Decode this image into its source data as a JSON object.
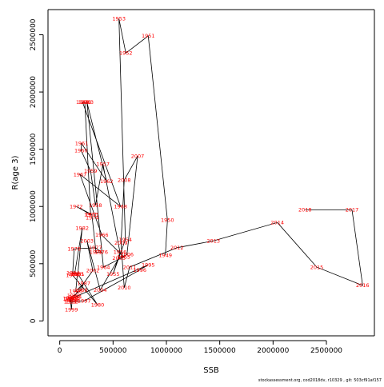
{
  "chart_data": {
    "type": "line",
    "title": "",
    "xlabel": "SSB",
    "ylabel": "R(age 3)",
    "xlim": [
      -110000,
      2950000
    ],
    "ylim": [
      -130000,
      2720000
    ],
    "x_ticks": [
      0,
      500000,
      1000000,
      1500000,
      2000000,
      2500000
    ],
    "x_tick_labels": [
      "0",
      "500000",
      "1000000",
      "1500000",
      "2000000",
      "2500000"
    ],
    "y_ticks": [
      0,
      500000,
      1000000,
      1500000,
      2000000,
      2500000
    ],
    "y_tick_labels": [
      "0",
      "500000",
      "1000000",
      "1500000",
      "2000000",
      "2500000"
    ],
    "grid": false,
    "legend": "none",
    "line_color": "#000000",
    "label_color": "#ff0000",
    "points": [
      {
        "year": "1949",
        "ssb": 990000,
        "r": 575000
      },
      {
        "year": "1950",
        "ssb": 1010000,
        "r": 880000
      },
      {
        "year": "1951",
        "ssb": 830000,
        "r": 2490000
      },
      {
        "year": "1952",
        "ssb": 620000,
        "r": 2340000
      },
      {
        "year": "1953",
        "ssb": 555000,
        "r": 2640000
      },
      {
        "year": "1954",
        "ssb": 615000,
        "r": 710000
      },
      {
        "year": "1955",
        "ssb": 500000,
        "r": 410000
      },
      {
        "year": "1956",
        "ssb": 565000,
        "r": 600000
      },
      {
        "year": "1957",
        "ssb": 405000,
        "r": 1370000
      },
      {
        "year": "1958",
        "ssb": 335000,
        "r": 1010000
      },
      {
        "year": "1959",
        "ssb": 290000,
        "r": 1310000
      },
      {
        "year": "1960",
        "ssb": 200000,
        "r": 1490000
      },
      {
        "year": "1961",
        "ssb": 205000,
        "r": 1550000
      },
      {
        "year": "1962",
        "ssb": 440000,
        "r": 1220000
      },
      {
        "year": "1963",
        "ssb": 255000,
        "r": 1910000
      },
      {
        "year": "1964",
        "ssb": 410000,
        "r": 470000
      },
      {
        "year": "1965",
        "ssb": 600000,
        "r": 560000
      },
      {
        "year": "1966",
        "ssb": 395000,
        "r": 750000
      },
      {
        "year": "1967",
        "ssb": 190000,
        "r": 1280000
      },
      {
        "year": "1968",
        "ssb": 570000,
        "r": 1000000
      },
      {
        "year": "1969",
        "ssb": 215000,
        "r": 1910000
      },
      {
        "year": "1970",
        "ssb": 235000,
        "r": 1910000
      },
      {
        "year": "1971",
        "ssb": 290000,
        "r": 930000
      },
      {
        "year": "1972",
        "ssb": 155000,
        "r": 1000000
      },
      {
        "year": "1973",
        "ssb": 300000,
        "r": 930000
      },
      {
        "year": "1974",
        "ssb": 305000,
        "r": 900000
      },
      {
        "year": "1975",
        "ssb": 340000,
        "r": 600000
      },
      {
        "year": "1976",
        "ssb": 390000,
        "r": 600000
      },
      {
        "year": "1977",
        "ssb": 335000,
        "r": 640000
      },
      {
        "year": "1978",
        "ssb": 135000,
        "r": 630000
      },
      {
        "year": "1979",
        "ssb": 120000,
        "r": 400000
      },
      {
        "year": "1980",
        "ssb": 355000,
        "r": 140000
      },
      {
        "year": "1981",
        "ssb": 170000,
        "r": 410000
      },
      {
        "year": "1982",
        "ssb": 210000,
        "r": 810000
      },
      {
        "year": "1983",
        "ssb": 140000,
        "r": 410000
      },
      {
        "year": "1984",
        "ssb": 125000,
        "r": 420000
      },
      {
        "year": "1985",
        "ssb": 165000,
        "r": 410000
      },
      {
        "year": "1986",
        "ssb": 150000,
        "r": 260000
      },
      {
        "year": "1987",
        "ssb": 225000,
        "r": 330000
      },
      {
        "year": "1988",
        "ssb": 200000,
        "r": 270000
      },
      {
        "year": "1989",
        "ssb": 130000,
        "r": 220000
      },
      {
        "year": "1990",
        "ssb": 90000,
        "r": 195000
      },
      {
        "year": "1991",
        "ssb": 100000,
        "r": 170000
      },
      {
        "year": "1992",
        "ssb": 130000,
        "r": 190000
      },
      {
        "year": "1993",
        "ssb": 110000,
        "r": 195000
      },
      {
        "year": "1994",
        "ssb": 145000,
        "r": 210000
      },
      {
        "year": "1995",
        "ssb": 830000,
        "r": 490000
      },
      {
        "year": "1996",
        "ssb": 750000,
        "r": 445000
      },
      {
        "year": "1997",
        "ssb": 230000,
        "r": 175000
      },
      {
        "year": "1998",
        "ssb": 115000,
        "r": 170000
      },
      {
        "year": "1999",
        "ssb": 110000,
        "r": 100000
      },
      {
        "year": "2000",
        "ssb": 100000,
        "r": 190000
      },
      {
        "year": "2001",
        "ssb": 125000,
        "r": 200000
      },
      {
        "year": "2002",
        "ssb": 310000,
        "r": 440000
      },
      {
        "year": "2003",
        "ssb": 255000,
        "r": 700000
      },
      {
        "year": "2004",
        "ssb": 380000,
        "r": 270000
      },
      {
        "year": "2005",
        "ssb": 555000,
        "r": 550000
      },
      {
        "year": "2006",
        "ssb": 630000,
        "r": 580000
      },
      {
        "year": "2007",
        "ssb": 730000,
        "r": 1440000
      },
      {
        "year": "2008",
        "ssb": 605000,
        "r": 1230000
      },
      {
        "year": "2009",
        "ssb": 575000,
        "r": 680000
      },
      {
        "year": "2010",
        "ssb": 605000,
        "r": 290000
      },
      {
        "year": "2011",
        "ssb": 655000,
        "r": 470000
      },
      {
        "year": "2012",
        "ssb": 1100000,
        "r": 640000
      },
      {
        "year": "2013",
        "ssb": 1440000,
        "r": 700000
      },
      {
        "year": "2014",
        "ssb": 2040000,
        "r": 860000
      },
      {
        "year": "2015",
        "ssb": 2410000,
        "r": 470000
      },
      {
        "year": "2016",
        "ssb": 2840000,
        "r": 310000
      },
      {
        "year": "2017",
        "ssb": 2740000,
        "r": 970000
      },
      {
        "year": "2018",
        "ssb": 2300000,
        "r": 970000
      }
    ]
  },
  "footer": {
    "text": "stockassessment.org,  cod2018dv,  r10329 ,  git: 503cf91af157"
  }
}
